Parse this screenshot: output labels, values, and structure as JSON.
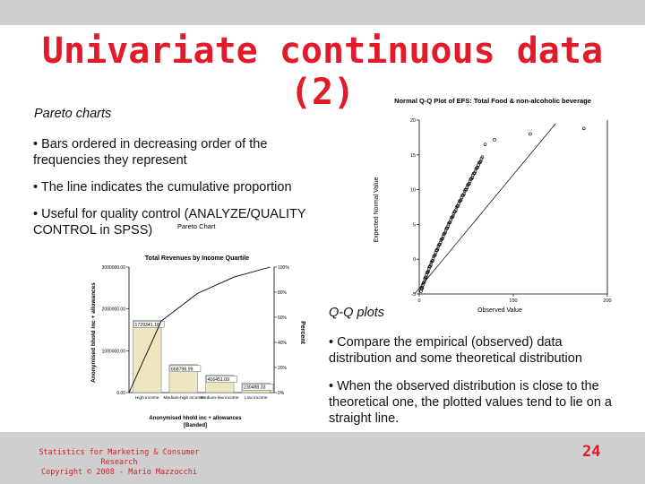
{
  "slide": {
    "title": "Univariate continuous data (2)",
    "pareto_heading": "Pareto charts",
    "pareto_bullets": [
      "• Bars ordered in decreasing order of the frequencies they represent",
      "• The line indicates the cumulative proportion",
      "• Useful for quality control (ANALYZE/QUALITY CONTROL in SPSS)"
    ],
    "qq_heading": "Q-Q plots",
    "qq_bullets": [
      "• Compare the empirical (observed) data distribution and some theoretical distribution",
      "• When the observed distribution is close to the theoretical one, the plotted values tend to lie on a straight line."
    ],
    "footer_line1": "Statistics for Marketing & Consumer Research",
    "footer_line2": "Copyright © 2008 - Mario Mazzocchi",
    "page_number": "24"
  },
  "chart_data": [
    {
      "type": "scatter",
      "title": "Normal Q-Q Plot of EFS: Total Food & non-alcoholic beverage",
      "xlabel": "Observed Value",
      "ylabel": "Expected Normal Value",
      "x_ticks": [
        "0",
        "100",
        "200"
      ],
      "y_ticks": [
        "20",
        "15",
        "10",
        "5",
        "0",
        "-5"
      ],
      "xlim": [
        0,
        200
      ],
      "ylim": [
        -5,
        20
      ],
      "reference_line": true,
      "points_shape": "approximately straight line"
    },
    {
      "type": "bar",
      "overhead_label": "Pareto Chart",
      "title": "Total Revenues by Income Quartile",
      "xlabel": "Anonymised hhold inc + allowances [Banded]",
      "ylabel": "Anonymised hhold inc + allowances",
      "y2label": "Percent",
      "categories": [
        "High income",
        "Medium-high income",
        "Medium-low income",
        "Low income"
      ],
      "values": [
        1729341.18,
        668798.99,
        416451.09,
        230488.33
      ],
      "value_labels": [
        "1729341.18",
        "668798.99",
        "416451.09",
        "230488.33"
      ],
      "y_ticks": [
        "3000000.00",
        "2000000.00",
        "1000000.00",
        "0.00"
      ],
      "y2_ticks": [
        "100%",
        "80%",
        "60%",
        "40%",
        "20%",
        "0%"
      ],
      "ylim": [
        0,
        3000000
      ],
      "cumulative_percent": [
        57,
        79,
        92,
        100
      ]
    }
  ]
}
